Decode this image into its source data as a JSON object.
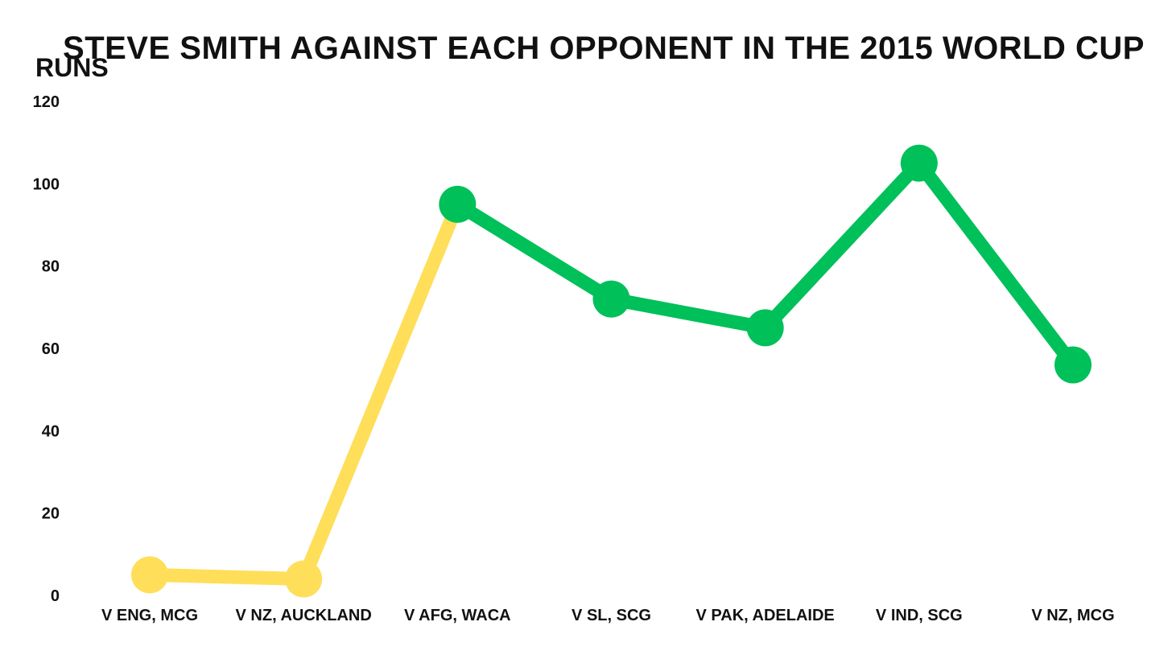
{
  "chart_data": {
    "type": "line",
    "title": "STEVE SMITH AGAINST EACH OPPONENT IN THE 2015 WORLD CUP",
    "xlabel": "",
    "ylabel": "RUNS",
    "categories": [
      "V ENG, MCG",
      "V NZ, AUCKLAND",
      "V AFG, WACA",
      "V SL, SCG",
      "V PAK, ADELAIDE",
      "V IND, SCG",
      "V NZ, MCG"
    ],
    "values": [
      5,
      4,
      95,
      72,
      65,
      105,
      56
    ],
    "point_colors": [
      "#FFDE59",
      "#FFDE59",
      "#00C05A",
      "#00C05A",
      "#00C05A",
      "#00C05A",
      "#00C05A"
    ],
    "segment_colors": [
      "#FFDE59",
      "#FFDE59",
      "#00C05A",
      "#00C05A",
      "#00C05A",
      "#00C05A"
    ],
    "yticks": [
      0,
      20,
      40,
      60,
      80,
      100,
      120
    ],
    "ylim": [
      0,
      120
    ],
    "grid": false,
    "legend": "none"
  }
}
